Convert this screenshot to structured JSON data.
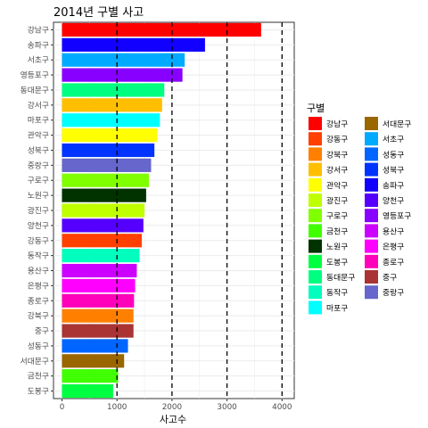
{
  "chart_data": {
    "type": "bar",
    "orientation": "horizontal",
    "title": "2014년 구별 사고",
    "xlabel": "사고수",
    "ylabel": "",
    "xlim": [
      0,
      4100
    ],
    "xticks": [
      0,
      1000,
      2000,
      3000,
      4000
    ],
    "vlines": [
      1000,
      2000,
      3000,
      4000
    ],
    "grid": true,
    "legend_title": "구별",
    "legend_position": "right",
    "categories": [
      "강남구",
      "송파구",
      "서초구",
      "영등포구",
      "동대문구",
      "강서구",
      "마포구",
      "관악구",
      "성북구",
      "중랑구",
      "구로구",
      "노원구",
      "광진구",
      "양천구",
      "강동구",
      "동작구",
      "용산구",
      "은평구",
      "종로구",
      "강북구",
      "중구",
      "성동구",
      "서대문구",
      "금천구",
      "도봉구"
    ],
    "values": [
      3620,
      2600,
      2230,
      2190,
      1860,
      1820,
      1780,
      1730,
      1680,
      1620,
      1580,
      1530,
      1500,
      1480,
      1450,
      1410,
      1360,
      1330,
      1310,
      1300,
      1300,
      1200,
      1130,
      1020,
      930
    ],
    "colors": {
      "강남구": "#FF0000",
      "강동구": "#FF4000",
      "강북구": "#FF8000",
      "강서구": "#FFBF00",
      "관악구": "#FFFF00",
      "광진구": "#BFFF00",
      "구로구": "#80FF00",
      "금천구": "#40FF00",
      "노원구": "#003300",
      "도봉구": "#00FF40",
      "동대문구": "#00FF80",
      "동작구": "#00FFBF",
      "마포구": "#00FFFF",
      "서대문구": "#996600",
      "서초구": "#00AAFF",
      "성동구": "#0066FF",
      "성북구": "#0033FF",
      "송파구": "#1100FF",
      "양천구": "#5500FF",
      "영등포구": "#8800FF",
      "용산구": "#CC00FF",
      "은평구": "#FF00FF",
      "종로구": "#FF00BB",
      "중구": "#AA3333",
      "중랑구": "#6666CC"
    },
    "legend_order": [
      "강남구",
      "강동구",
      "강북구",
      "강서구",
      "관악구",
      "광진구",
      "구로구",
      "금천구",
      "노원구",
      "도봉구",
      "동대문구",
      "동작구",
      "마포구",
      "서대문구",
      "서초구",
      "성동구",
      "성북구",
      "송파구",
      "양천구",
      "영등포구",
      "용산구",
      "은평구",
      "종로구",
      "중구",
      "중랑구"
    ]
  }
}
